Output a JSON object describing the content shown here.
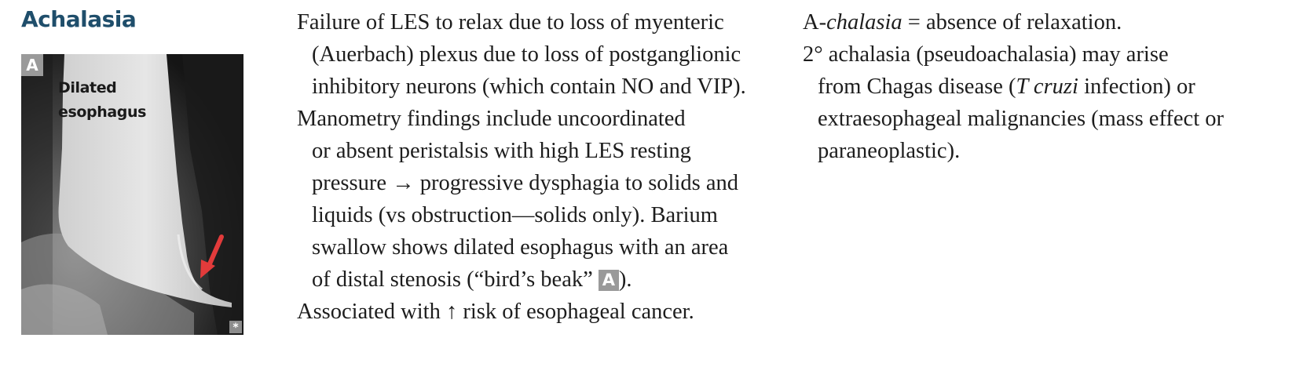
{
  "title": "Achalasia",
  "figure": {
    "panel_letter": "A",
    "label_line1": "Dilated",
    "label_line2": "esophagus",
    "credit_mark": "*"
  },
  "middle": {
    "para1": {
      "l1": "Failure of LES to relax due to loss of myenteric",
      "l2": "(Auerbach) plexus due to loss of postganglionic",
      "l3": "inhibitory neurons (which contain NO and",
      "l4": "VIP)."
    },
    "para2": {
      "l1": "Manometry findings include uncoordinated",
      "l2": "or absent peristalsis with high LES resting",
      "l3": "pressure → progressive dysphagia to solids and",
      "l4": "liquids (vs obstruction—solids only). Barium",
      "l5": "swallow shows dilated esophagus with an area",
      "l6_pre": "of distal stenosis (“bird’s beak” ",
      "l6_badge": "A",
      "l6_post": ")."
    },
    "para3": {
      "pre": "Associated with ",
      "arrow": "↑",
      "post": " risk of esophageal cancer."
    }
  },
  "right": {
    "para1": {
      "pre": "A-",
      "italic": "chalasia",
      "post": " = absence of relaxation."
    },
    "para2": {
      "l1": "2° achalasia (pseudoachalasia) may arise",
      "l2_pre": "from Chagas disease (",
      "l2_italic": "T cruzi",
      "l2_post": " infection) or",
      "l3": "extraesophageal malignancies (mass effect or",
      "l4": "paraneoplastic)."
    }
  }
}
